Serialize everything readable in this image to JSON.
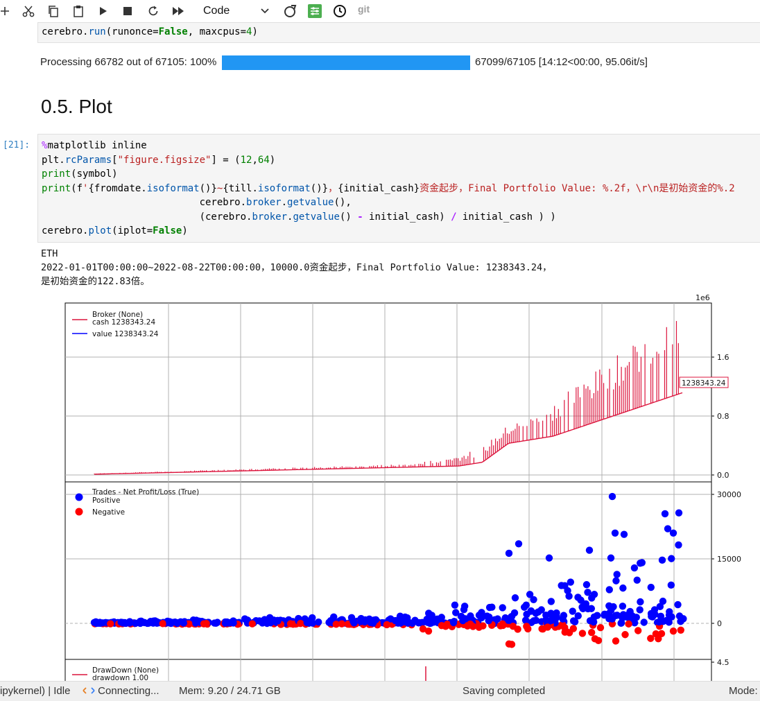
{
  "toolbar": {
    "cell_type": "Code",
    "git_label": "git",
    "buttons": [
      "add-icon",
      "cut-icon",
      "copy-icon",
      "paste-icon",
      "run-icon",
      "stop-icon",
      "restart-icon",
      "fast-forward-icon"
    ]
  },
  "cell1": {
    "code_line": "cerebro.run(runonce=False, maxcpus=4)"
  },
  "progress": {
    "left_text": "Processing 66782 out of 67105: 100%",
    "right_text": "67099/67105 [14:12<00:00, 95.06it/s]",
    "fraction": 1.0,
    "color": "#2196f3"
  },
  "section": {
    "title": "0.5. Plot"
  },
  "cell2": {
    "prompt": "[21]:"
  },
  "output": {
    "line1": "ETH",
    "line2": "2022-01-01T00:00:00~2022-08-22T00:00:00，10000.0资金起步，Final Portfolio Value: 1238343.24，",
    "line3": "是初始资金的122.83倍。"
  },
  "chart_data": [
    {
      "type": "line",
      "panel": "broker",
      "legend_title": "Broker (None)",
      "series": [
        {
          "name": "cash 1238343.24",
          "color": "#dc143c"
        },
        {
          "name": "value 1238343.24",
          "color": "#0000ff"
        }
      ],
      "offset_label": "1e6",
      "yticks": [
        "0.0",
        "0.8",
        "1.6"
      ],
      "ylim": [
        -0.05,
        2.35
      ],
      "last_value_label": "1238343.24",
      "end_value": 1238343.24,
      "grid": true,
      "legend_position": "top-left"
    },
    {
      "type": "scatter",
      "panel": "trades",
      "legend_title": "Trades - Net Profit/Loss (True)",
      "series": [
        {
          "name": "Positive",
          "color": "#0000ff"
        },
        {
          "name": "Negative",
          "color": "#ff0000"
        }
      ],
      "yticks": [
        "0",
        "15000",
        "30000"
      ],
      "ylim": [
        -5000,
        31000
      ],
      "max_positive": 29500,
      "min_negative": -4800,
      "grid": true,
      "legend_position": "top-left"
    },
    {
      "type": "line",
      "panel": "drawdown",
      "legend_title": "DrawDown (None)",
      "series": [
        {
          "name": "drawdown 1.00",
          "color": "#dc143c"
        }
      ],
      "yticks": [
        "4.5"
      ],
      "legend_position": "top-left"
    }
  ],
  "status": {
    "kernel": "ipykernel) | Idle",
    "connecting": "Connecting...",
    "memory": "Mem: 9.20 / 24.71 GB",
    "saving": "Saving completed",
    "mode": "Mode:"
  }
}
